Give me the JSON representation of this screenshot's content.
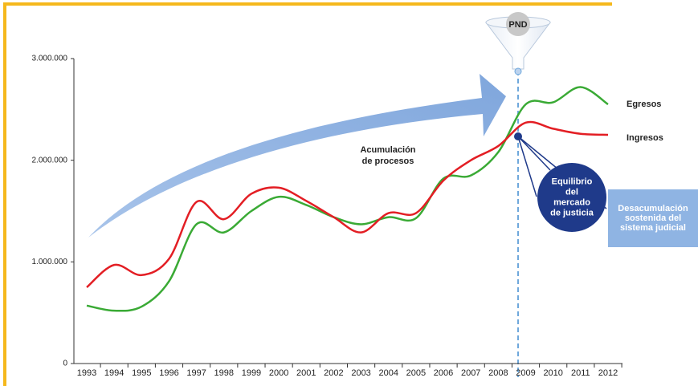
{
  "chart_data": {
    "type": "line",
    "categories": [
      "1993",
      "1994",
      "1995",
      "1996",
      "1997",
      "1998",
      "1999",
      "2000",
      "2001",
      "2002",
      "2003",
      "2004",
      "2005",
      "2006",
      "2007",
      "2008",
      "2009",
      "2010",
      "2011",
      "2012"
    ],
    "series": [
      {
        "name": "Egresos",
        "color": "#3aaa35",
        "values": [
          570000,
          520000,
          560000,
          810000,
          1370000,
          1290000,
          1500000,
          1640000,
          1560000,
          1440000,
          1370000,
          1440000,
          1430000,
          1820000,
          1850000,
          2080000,
          2550000,
          2570000,
          2720000,
          2550000
        ]
      },
      {
        "name": "Ingresos",
        "color": "#e31e24",
        "values": [
          750000,
          970000,
          870000,
          1030000,
          1590000,
          1420000,
          1670000,
          1730000,
          1600000,
          1440000,
          1290000,
          1480000,
          1480000,
          1800000,
          2000000,
          2140000,
          2370000,
          2310000,
          2260000,
          2250000
        ]
      }
    ],
    "ylim": [
      0,
      3000000
    ],
    "yticks": [
      0,
      {
        "value": 1000000,
        "label": "1.000.000"
      },
      {
        "value": 2000000,
        "label": "2.000.000"
      },
      {
        "value": 3000000,
        "label": "3.000.000"
      }
    ],
    "annotations": {
      "arrow": [
        "Acumulación",
        "de procesos"
      ],
      "funnel": "PND",
      "circle": [
        "Equilibrio",
        "del",
        "mercado",
        "de justicia"
      ],
      "box": [
        "Desacumulación",
        "sostenida del",
        "sistema judicial"
      ]
    }
  }
}
